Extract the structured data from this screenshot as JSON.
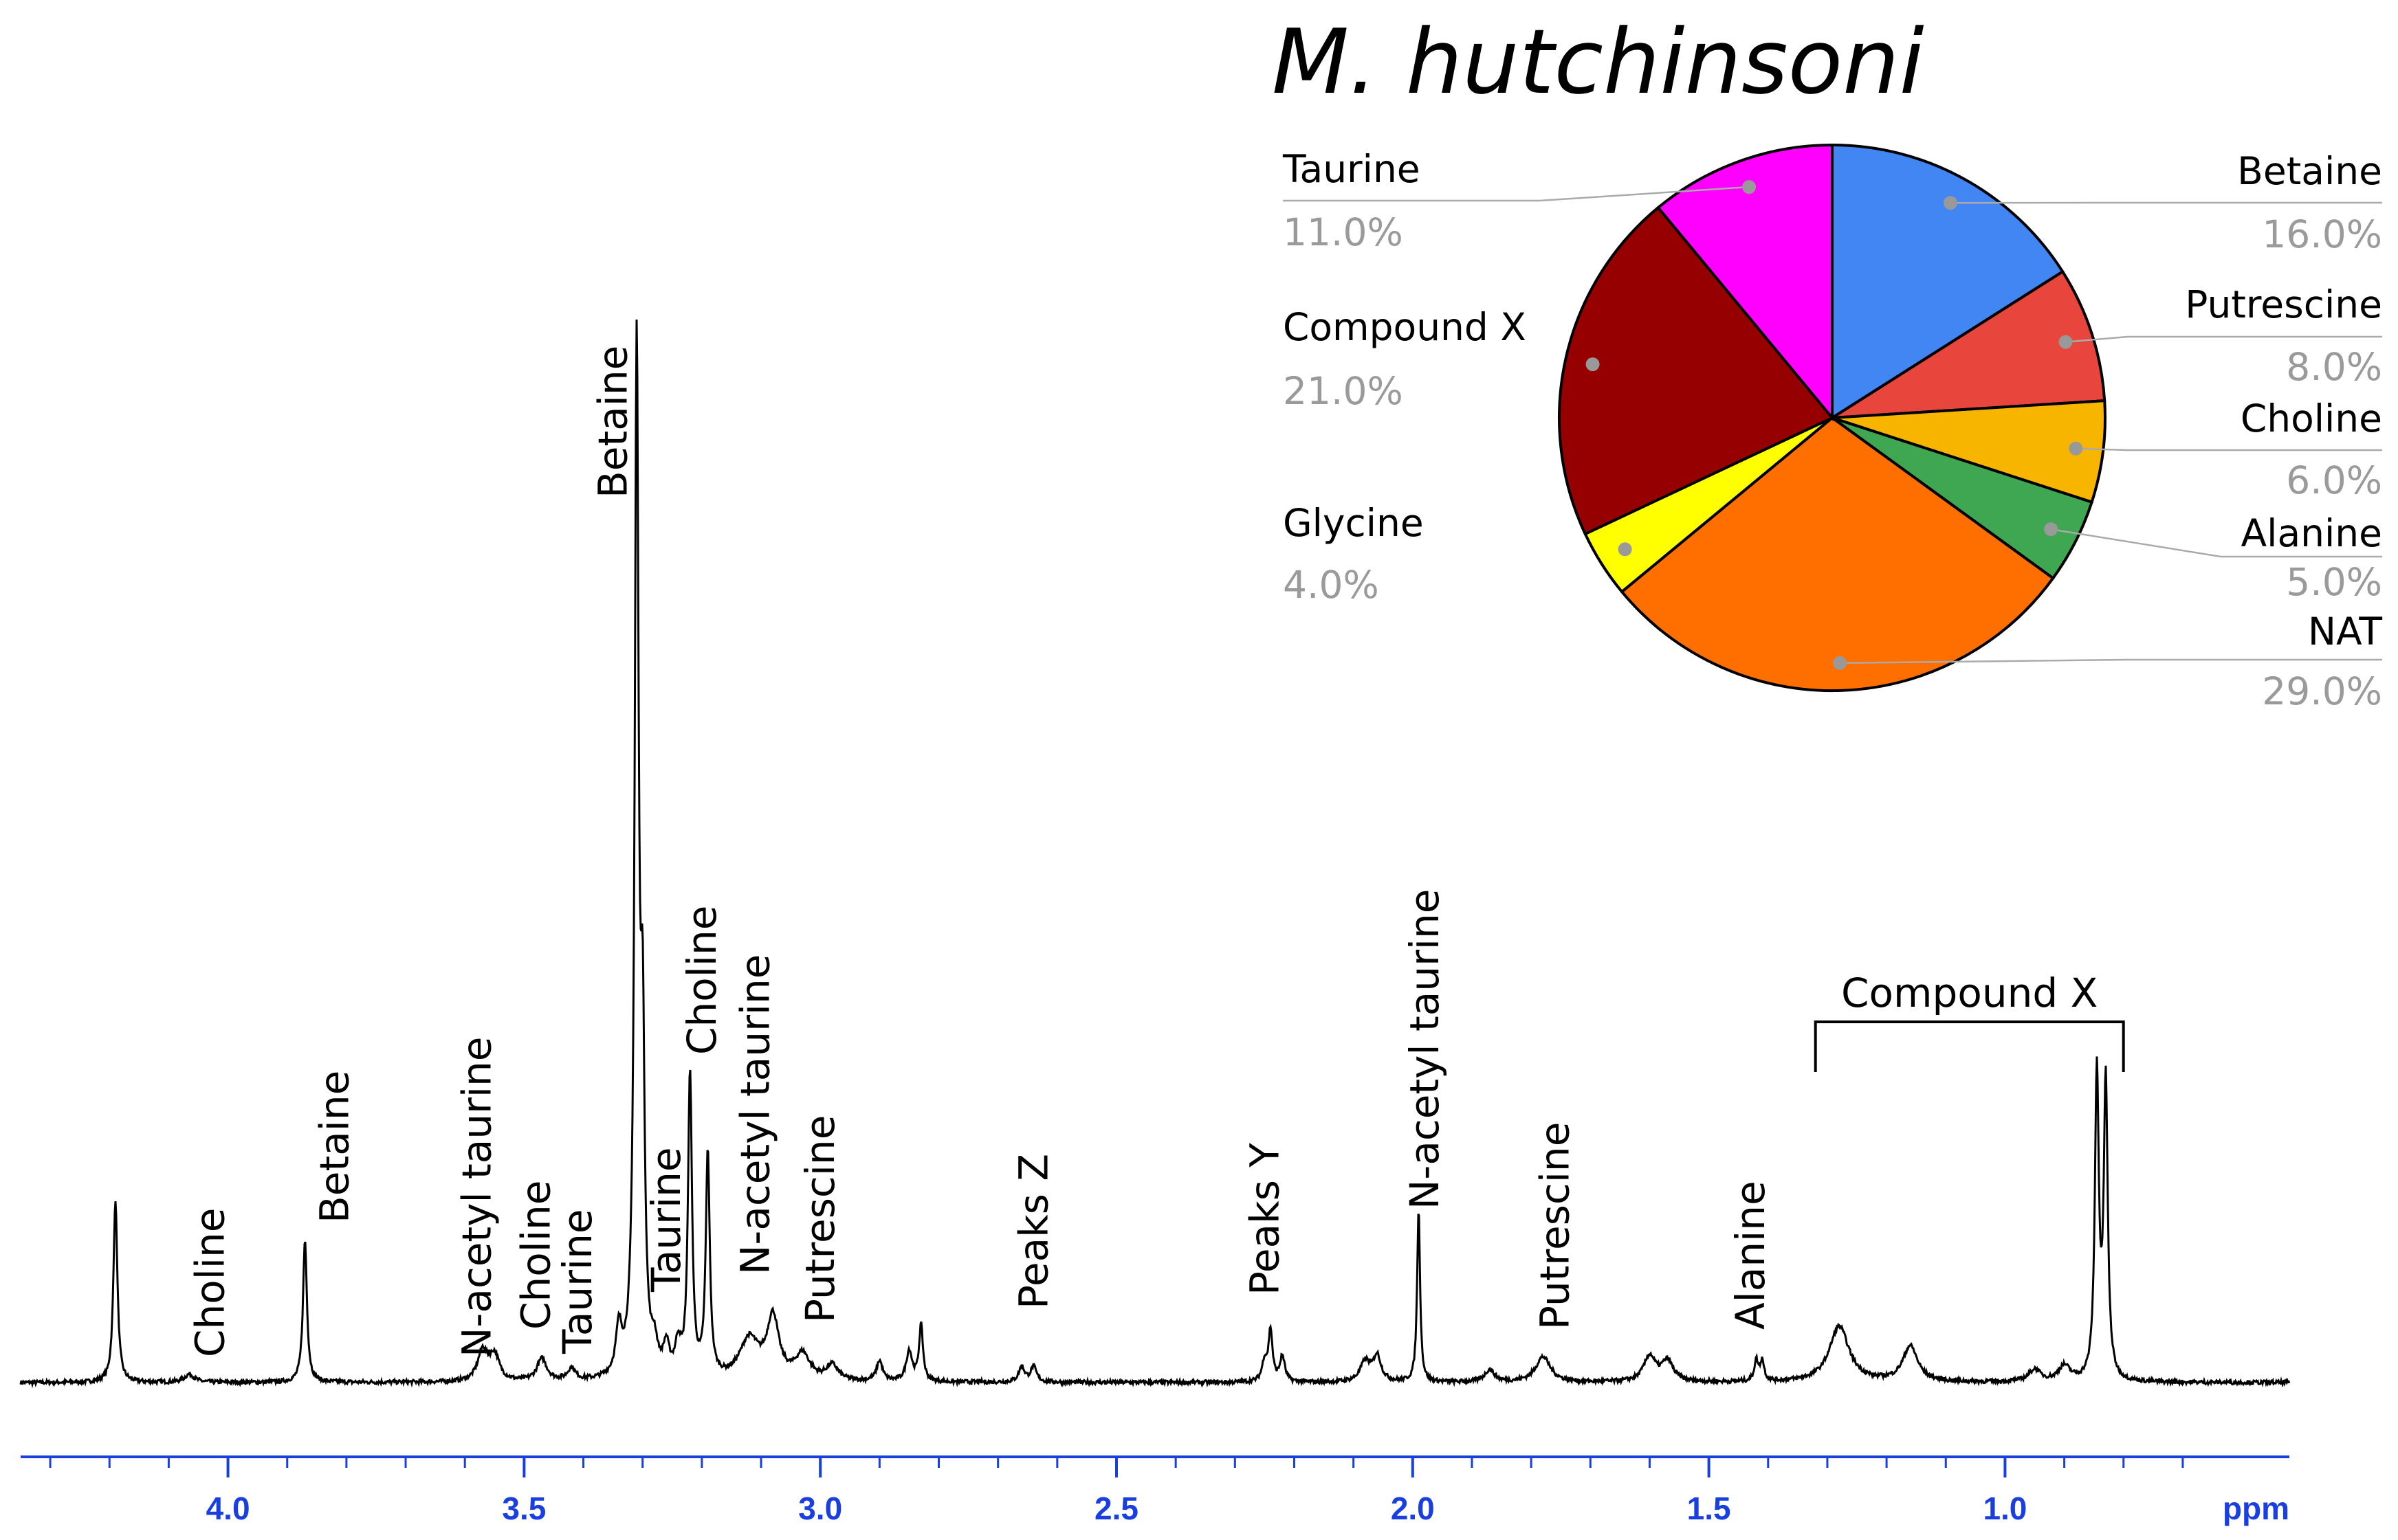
{
  "chart_data": [
    {
      "type": "line",
      "title": "",
      "xlabel": "ppm",
      "ylabel": "",
      "xlim": [
        4.35,
        0.52
      ],
      "x_reversed": true,
      "ticks": [
        {
          "value": 4.0,
          "label": "4.0"
        },
        {
          "value": 3.5,
          "label": "3.5"
        },
        {
          "value": 3.0,
          "label": "3.0"
        },
        {
          "value": 2.5,
          "label": "2.5"
        },
        {
          "value": 2.0,
          "label": "2.0"
        },
        {
          "value": 1.5,
          "label": "1.5"
        },
        {
          "value": 1.0,
          "label": "1.0"
        }
      ],
      "peaks": [
        {
          "ppm": 4.19,
          "height": 0.18,
          "width": 0.004
        },
        {
          "ppm": 4.065,
          "height": 0.008,
          "width": 0.01
        },
        {
          "ppm": 3.87,
          "height": 0.14,
          "width": 0.004
        },
        {
          "ppm": 3.57,
          "height": 0.03,
          "width": 0.01
        },
        {
          "ppm": 3.55,
          "height": 0.025,
          "width": 0.01
        },
        {
          "ppm": 3.47,
          "height": 0.022,
          "width": 0.01
        },
        {
          "ppm": 3.42,
          "height": 0.012,
          "width": 0.008
        },
        {
          "ppm": 3.34,
          "height": 0.045,
          "width": 0.006
        },
        {
          "ppm": 3.31,
          "height": 1.0,
          "width": 0.004
        },
        {
          "ppm": 3.3,
          "height": 0.3,
          "width": 0.004
        },
        {
          "ppm": 3.28,
          "height": 0.025,
          "width": 0.006
        },
        {
          "ppm": 3.26,
          "height": 0.028,
          "width": 0.006
        },
        {
          "ppm": 3.24,
          "height": 0.03,
          "width": 0.006
        },
        {
          "ppm": 3.22,
          "height": 0.3,
          "width": 0.004
        },
        {
          "ppm": 3.19,
          "height": 0.22,
          "width": 0.004
        },
        {
          "ppm": 3.12,
          "height": 0.04,
          "width": 0.02
        },
        {
          "ppm": 3.08,
          "height": 0.06,
          "width": 0.012
        },
        {
          "ppm": 3.03,
          "height": 0.025,
          "width": 0.015
        },
        {
          "ppm": 2.98,
          "height": 0.015,
          "width": 0.012
        },
        {
          "ppm": 2.9,
          "height": 0.02,
          "width": 0.006
        },
        {
          "ppm": 2.85,
          "height": 0.03,
          "width": 0.006
        },
        {
          "ppm": 2.83,
          "height": 0.055,
          "width": 0.004
        },
        {
          "ppm": 2.66,
          "height": 0.015,
          "width": 0.006
        },
        {
          "ppm": 2.64,
          "height": 0.015,
          "width": 0.006
        },
        {
          "ppm": 2.25,
          "height": 0.02,
          "width": 0.005
        },
        {
          "ppm": 2.24,
          "height": 0.05,
          "width": 0.004
        },
        {
          "ppm": 2.22,
          "height": 0.025,
          "width": 0.005
        },
        {
          "ppm": 2.08,
          "height": 0.02,
          "width": 0.01
        },
        {
          "ppm": 2.06,
          "height": 0.025,
          "width": 0.008
        },
        {
          "ppm": 1.99,
          "height": 0.17,
          "width": 0.003
        },
        {
          "ppm": 1.87,
          "height": 0.012,
          "width": 0.01
        },
        {
          "ppm": 1.78,
          "height": 0.025,
          "width": 0.015
        },
        {
          "ppm": 1.6,
          "height": 0.025,
          "width": 0.012
        },
        {
          "ppm": 1.57,
          "height": 0.02,
          "width": 0.012
        },
        {
          "ppm": 1.42,
          "height": 0.02,
          "width": 0.004
        },
        {
          "ppm": 1.41,
          "height": 0.02,
          "width": 0.004
        },
        {
          "ppm": 1.28,
          "height": 0.055,
          "width": 0.02
        },
        {
          "ppm": 1.16,
          "height": 0.035,
          "width": 0.015
        },
        {
          "ppm": 0.95,
          "height": 0.012,
          "width": 0.012
        },
        {
          "ppm": 0.9,
          "height": 0.015,
          "width": 0.012
        },
        {
          "ppm": 0.845,
          "height": 0.3,
          "width": 0.004
        },
        {
          "ppm": 0.83,
          "height": 0.29,
          "width": 0.004
        }
      ],
      "peak_labels": [
        {
          "text": "Choline",
          "ppm": 4.03
        },
        {
          "text": "Betaine",
          "ppm": 3.82
        },
        {
          "text": "N-acetyl taurine",
          "ppm": 3.58
        },
        {
          "text": "Choline",
          "ppm": 3.48
        },
        {
          "text": "Taurine",
          "ppm": 3.41
        },
        {
          "text": "Betaine",
          "ppm": 3.35
        },
        {
          "text": "Taurine",
          "ppm": 3.26
        },
        {
          "text": "Choline",
          "ppm": 3.2
        },
        {
          "text": "N-acetyl taurine",
          "ppm": 3.11
        },
        {
          "text": "Putrescine",
          "ppm": 3.0
        },
        {
          "text": "Peaks Z",
          "ppm": 2.64
        },
        {
          "text": "Peaks Y",
          "ppm": 2.25
        },
        {
          "text": "N-acetyl taurine",
          "ppm": 1.98
        },
        {
          "text": "Putrescine",
          "ppm": 1.76
        },
        {
          "text": "Alanine",
          "ppm": 1.43
        }
      ],
      "bracket": {
        "text": "Compound X",
        "from_ppm": 1.32,
        "to_ppm": 0.8
      }
    },
    {
      "type": "pie",
      "title": "M. hutchinsoni",
      "slices": [
        {
          "label": "Betaine",
          "value": 16.0,
          "pct_label": "16.0%",
          "color": "#4286f4",
          "side": "right"
        },
        {
          "label": "Putrescine",
          "value": 8.0,
          "pct_label": "8.0%",
          "color": "#e8453c",
          "side": "right"
        },
        {
          "label": "Choline",
          "value": 6.0,
          "pct_label": "6.0%",
          "color": "#f7b500",
          "side": "right"
        },
        {
          "label": "Alanine",
          "value": 5.0,
          "pct_label": "5.0%",
          "color": "#3fa652",
          "side": "right"
        },
        {
          "label": "NAT",
          "value": 29.0,
          "pct_label": "29.0%",
          "color": "#ff6f00",
          "side": "right"
        },
        {
          "label": "Glycine",
          "value": 4.0,
          "pct_label": "4.0%",
          "color": "#ffff00",
          "side": "left"
        },
        {
          "label": "Compound X",
          "value": 21.0,
          "pct_label": "21.0%",
          "color": "#960000",
          "side": "left"
        },
        {
          "label": "Taurine",
          "value": 11.0,
          "pct_label": "11.0%",
          "color": "#ff00ff",
          "side": "left"
        }
      ]
    }
  ]
}
